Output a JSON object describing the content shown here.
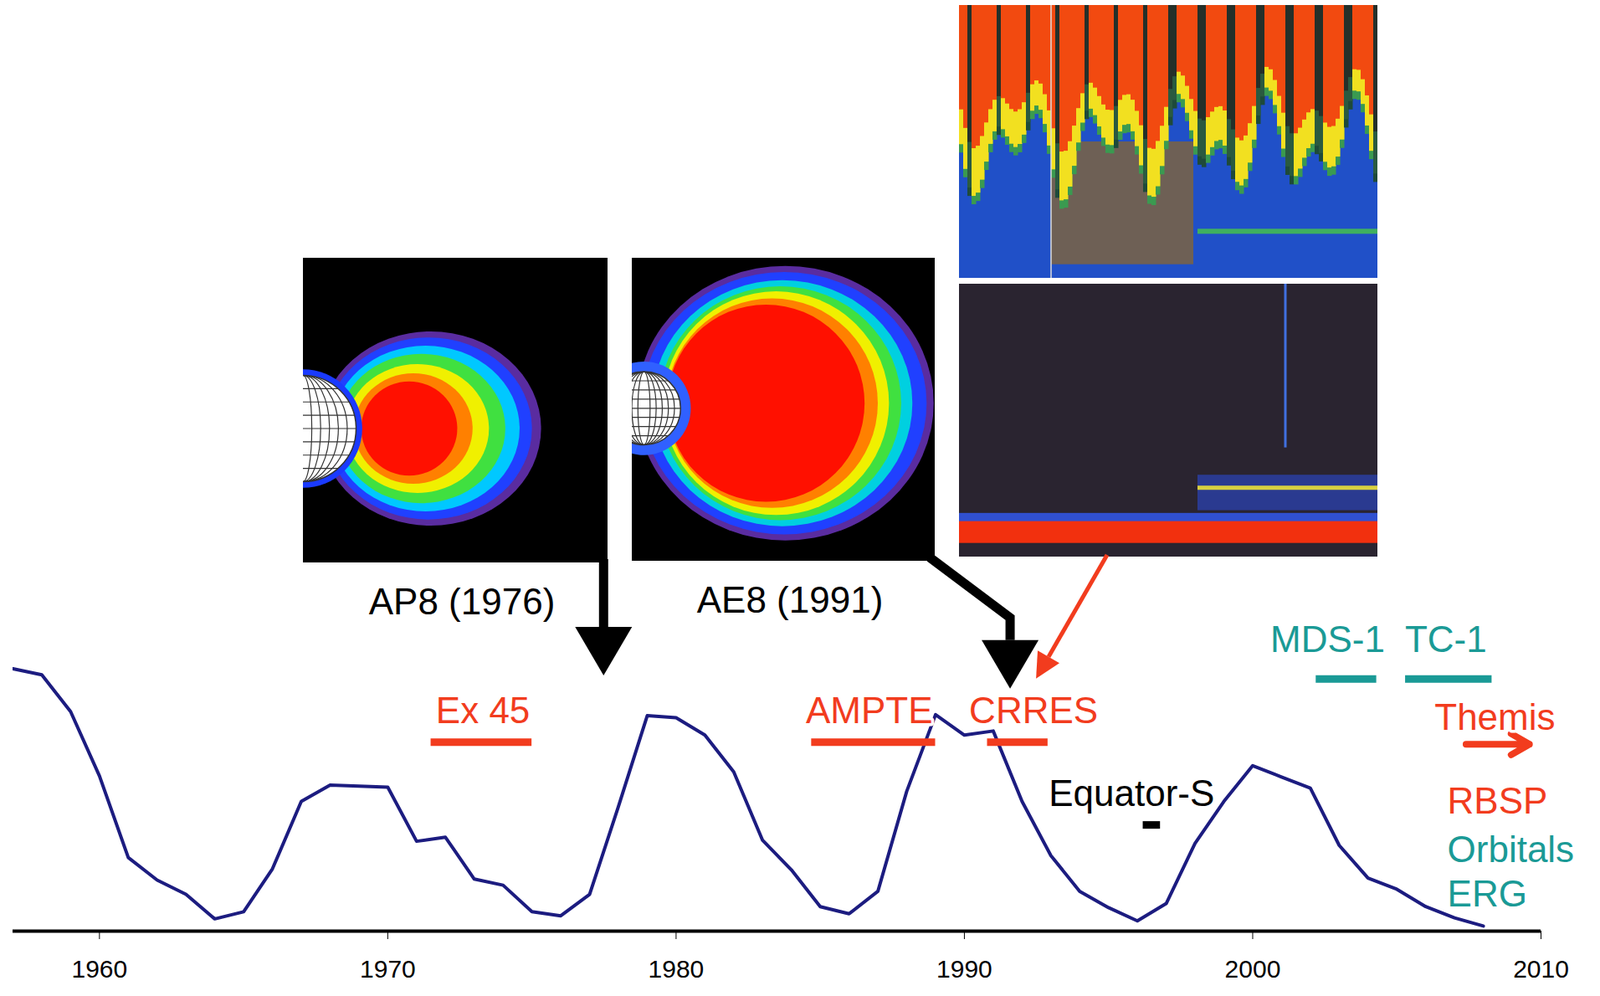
{
  "chart_data": {
    "type": "line",
    "color": "#1c1c80",
    "x": [
      1957,
      1958,
      1959,
      1960,
      1961,
      1962,
      1963,
      1964,
      1965,
      1966,
      1967,
      1968,
      1969,
      1970,
      1971,
      1972,
      1973,
      1974,
      1975,
      1976,
      1977,
      1978,
      1979,
      1980,
      1981,
      1982,
      1983,
      1984,
      1985,
      1986,
      1987,
      1988,
      1989,
      1990,
      1991,
      1992,
      1993,
      1994,
      1995,
      1996,
      1997,
      1998,
      1999,
      2000,
      2001,
      2002,
      2003,
      2004,
      2005,
      2006,
      2007,
      2008
    ],
    "values": [
      257,
      251,
      215,
      152,
      72,
      50,
      36,
      12,
      19,
      61,
      127,
      143,
      142,
      141,
      88,
      92,
      51,
      45,
      19,
      15,
      36,
      122,
      211,
      209,
      192,
      156,
      89,
      60,
      24,
      17,
      39,
      137,
      212,
      192,
      196,
      127,
      74,
      39,
      23,
      10,
      27,
      86,
      127,
      162,
      151,
      140,
      84,
      52,
      41,
      24,
      13,
      5
    ],
    "xlim": [
      1957,
      2010
    ],
    "xticks": [
      1960,
      1970,
      1980,
      1990,
      2000,
      2010
    ],
    "ylim": [
      0,
      300
    ],
    "tick_labels": "x",
    "missions": [
      {
        "name": "Ex 45",
        "color": "#f23c1e",
        "start": 1971.5,
        "end": 1975.0,
        "level": 185,
        "label_x": 1973.3,
        "label_y": 215
      },
      {
        "name": "AMPTE",
        "color": "#f23c1e",
        "start": 1984.7,
        "end": 1989.0,
        "level": 185,
        "label_x": 1986.7,
        "label_y": 215
      },
      {
        "name": "CRRES",
        "color": "#f23c1e",
        "start": 1990.8,
        "end": 1992.9,
        "level": 185,
        "label_x": 1992.4,
        "label_y": 215
      },
      {
        "name": "Equator-S",
        "color": "#000000",
        "start": 1996.2,
        "end": 1996.8,
        "level": 104,
        "label_x": 1995.8,
        "label_y": 134
      },
      {
        "name": "MDS-1",
        "color": "#1a9a96",
        "start": 2002.2,
        "end": 2004.3,
        "level": 247,
        "label_x": 2002.6,
        "label_y": 285
      },
      {
        "name": "TC-1",
        "color": "#1a9a96",
        "start": 2005.3,
        "end": 2008.3,
        "level": 247,
        "label_x": 2006.7,
        "label_y": 285
      },
      {
        "name": "Themis",
        "color": "#f23c1e",
        "start": 2007.4,
        "end": 2009.6,
        "level": 183,
        "label_x": 2008.4,
        "label_y": 209,
        "marker": "arrow"
      }
    ],
    "annotations": [
      {
        "text": "RBSP",
        "x": 2006.75,
        "y": 127,
        "color": "#f23c1e"
      },
      {
        "text": "Orbitals",
        "x": 2006.75,
        "y": 79,
        "color": "#1a9a96"
      },
      {
        "text": "ERG",
        "x": 2006.75,
        "y": 36,
        "color": "#1a9a96"
      }
    ],
    "images": [
      {
        "caption": "AP8 (1976)",
        "arrow_to": {
          "x": 1977.5,
          "y": 250
        },
        "color": "#000000"
      },
      {
        "caption": "AE8 (1991)",
        "arrow_to": {
          "x": 1991.6,
          "y": 237
        },
        "color": "#000000"
      },
      {
        "arrow_to": {
          "x": 1992.5,
          "y": 247
        },
        "color": "#f23c1e"
      }
    ]
  }
}
